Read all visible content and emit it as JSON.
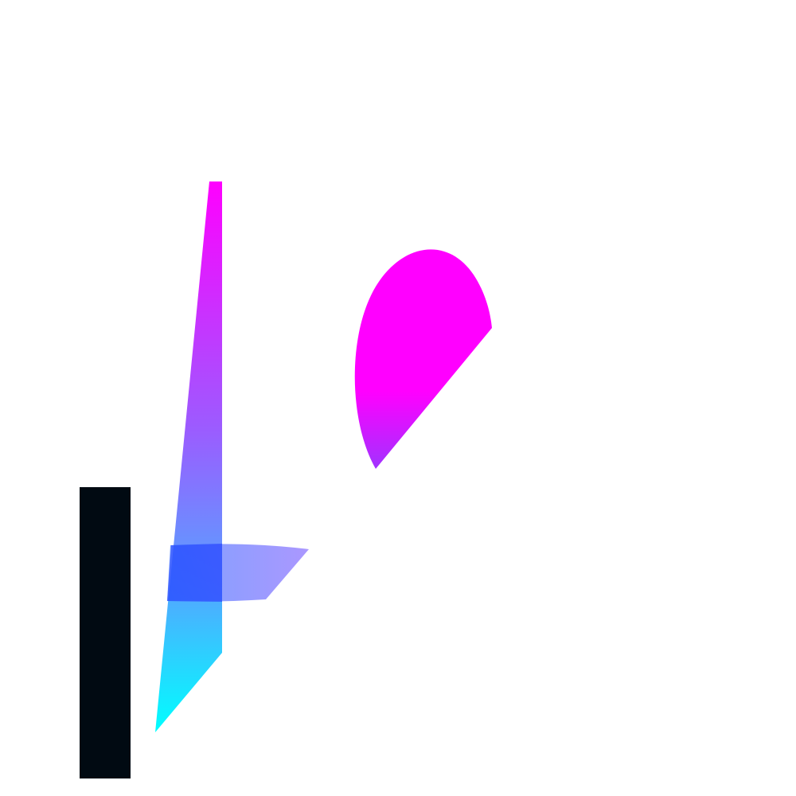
{
  "colors": {
    "background": "#ffffff",
    "bar": "#010a12",
    "magenta": "#ff00ff",
    "violet": "#9b5cff",
    "blue": "#3a6bff",
    "cyan": "#00ffff",
    "overlap_blue": "#1c3cff"
  },
  "shapes": [
    {
      "name": "black-bar",
      "kind": "rectangle"
    },
    {
      "name": "gradient-spike",
      "kind": "polygon"
    },
    {
      "name": "blue-blade",
      "kind": "polygon"
    },
    {
      "name": "magenta-leaf",
      "kind": "curved"
    }
  ]
}
